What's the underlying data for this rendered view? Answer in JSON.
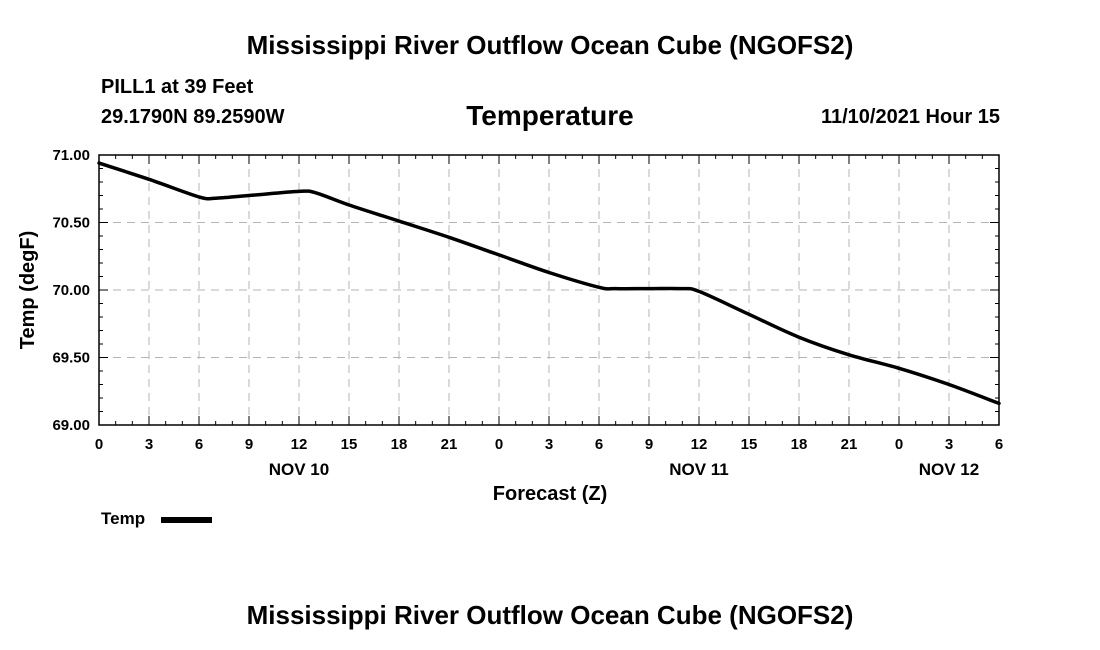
{
  "page": {
    "title": "Mississippi River Outflow Ocean Cube (NGOFS2)",
    "station": "PILL1 at 39 Feet",
    "coordinates": "29.1790N  89.2590W",
    "forecast_time": "11/10/2021 Hour 15",
    "bottom_title": "Mississippi River Outflow Ocean Cube (NGOFS2)"
  },
  "legend": {
    "label": "Temp"
  },
  "chart_data": {
    "type": "line",
    "title": "Temperature",
    "xlabel": "Forecast (Z)",
    "ylabel": "Temp (degF)",
    "xlim": [
      0,
      54
    ],
    "ylim": [
      69.0,
      71.0
    ],
    "yticks": [
      69.0,
      69.5,
      70.0,
      70.5,
      71.0
    ],
    "ytick_labels": [
      "69.00",
      "69.50",
      "70.00",
      "70.50",
      "71.00"
    ],
    "xticks": [
      0,
      3,
      6,
      9,
      12,
      15,
      18,
      21,
      24,
      27,
      30,
      33,
      36,
      39,
      42,
      45,
      48,
      51,
      54
    ],
    "xtick_labels": [
      "0",
      "3",
      "6",
      "9",
      "12",
      "15",
      "18",
      "21",
      "0",
      "3",
      "6",
      "9",
      "12",
      "15",
      "18",
      "21",
      "0",
      "3",
      "6"
    ],
    "date_labels": [
      {
        "label": "NOV 10",
        "x": 12
      },
      {
        "label": "NOV 11",
        "x": 36
      },
      {
        "label": "NOV 12",
        "x": 51
      }
    ],
    "grid": true,
    "series": [
      {
        "name": "Temp",
        "x": [
          0,
          3,
          6,
          7,
          9,
          12,
          13,
          15,
          18,
          21,
          24,
          27,
          30,
          31,
          33,
          35,
          36,
          39,
          42,
          45,
          48,
          51,
          54
        ],
        "values": [
          70.94,
          70.82,
          70.69,
          70.68,
          70.7,
          70.73,
          70.72,
          70.63,
          70.51,
          70.39,
          70.26,
          70.13,
          70.02,
          70.01,
          70.01,
          70.01,
          69.99,
          69.82,
          69.65,
          69.52,
          69.42,
          69.3,
          69.16
        ]
      }
    ]
  }
}
